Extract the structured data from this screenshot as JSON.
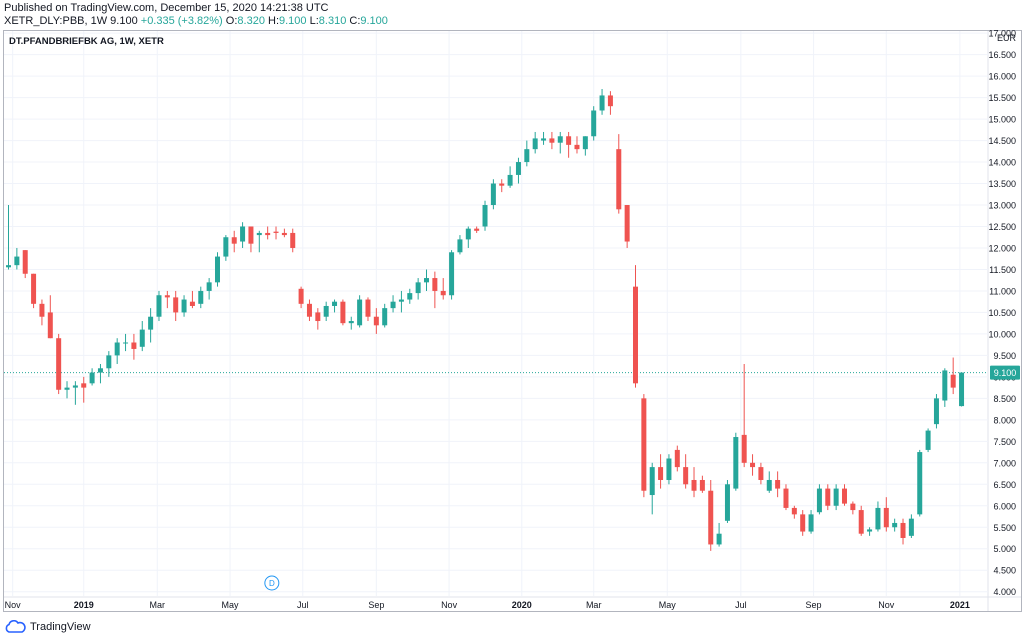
{
  "header": {
    "published": "Published on TradingView.com, December 15, 2020 14:21:38 UTC",
    "symbol": "XETR_DLY:PBB, 1W",
    "last": "9.100",
    "change": "+0.335 (+3.82%)",
    "o_label": "O:",
    "o_value": "8.320",
    "h_label": "H:",
    "h_value": "9.100",
    "l_label": "L:",
    "l_value": "8.310",
    "c_label": "C:",
    "c_value": "9.100"
  },
  "footer": {
    "brand": "TradingView"
  },
  "chart_data": {
    "type": "candlestick",
    "title": "DT.PFANDBRIEFBK AG, 1W, XETR",
    "currency": "EUR",
    "y_ticks": [
      "4.000",
      "4.500",
      "5.000",
      "5.500",
      "6.000",
      "6.500",
      "7.000",
      "7.500",
      "8.000",
      "8.500",
      "9.000",
      "9.500",
      "10.000",
      "10.500",
      "11.000",
      "11.500",
      "12.000",
      "12.500",
      "13.000",
      "13.500",
      "14.000",
      "14.500",
      "15.000",
      "15.500",
      "16.000",
      "16.500",
      "17.000"
    ],
    "ylim": [
      3.9,
      17.05
    ],
    "x_ticks": [
      {
        "label": "Nov",
        "index": 0.5
      },
      {
        "label": "2019",
        "index": 9
      },
      {
        "label": "Mar",
        "index": 17.8
      },
      {
        "label": "May",
        "index": 26.5
      },
      {
        "label": "Jul",
        "index": 35.2
      },
      {
        "label": "Sep",
        "index": 44
      },
      {
        "label": "Nov",
        "index": 52.7
      },
      {
        "label": "2020",
        "index": 61.4
      },
      {
        "label": "Mar",
        "index": 70
      },
      {
        "label": "May",
        "index": 78.8
      },
      {
        "label": "Jul",
        "index": 87.6
      },
      {
        "label": "Sep",
        "index": 96.3
      },
      {
        "label": "Nov",
        "index": 105
      },
      {
        "label": "2021",
        "index": 113.8
      }
    ],
    "last_price_label": "9.100",
    "last_price": 9.1,
    "dividend_marker": {
      "label": "D",
      "index": 31.5
    },
    "up_color": "#26a69a",
    "down_color": "#ef5350",
    "candles": [
      {
        "o": 11.55,
        "h": 13.0,
        "l": 11.5,
        "c": 11.6
      },
      {
        "o": 11.6,
        "h": 12.0,
        "l": 11.5,
        "c": 11.8
      },
      {
        "o": 11.95,
        "h": 11.95,
        "l": 11.3,
        "c": 11.4
      },
      {
        "o": 11.4,
        "h": 11.4,
        "l": 10.6,
        "c": 10.7
      },
      {
        "o": 10.7,
        "h": 10.8,
        "l": 10.2,
        "c": 10.4
      },
      {
        "o": 10.5,
        "h": 10.9,
        "l": 9.9,
        "c": 9.9
      },
      {
        "o": 9.9,
        "h": 10.0,
        "l": 8.6,
        "c": 8.7
      },
      {
        "o": 8.7,
        "h": 8.9,
        "l": 8.5,
        "c": 8.75
      },
      {
        "o": 8.75,
        "h": 8.9,
        "l": 8.35,
        "c": 8.8
      },
      {
        "o": 8.85,
        "h": 9.0,
        "l": 8.4,
        "c": 8.75
      },
      {
        "o": 8.85,
        "h": 9.2,
        "l": 8.8,
        "c": 9.1
      },
      {
        "o": 9.1,
        "h": 9.3,
        "l": 8.85,
        "c": 9.2
      },
      {
        "o": 9.2,
        "h": 9.6,
        "l": 9.0,
        "c": 9.5
      },
      {
        "o": 9.5,
        "h": 9.9,
        "l": 9.3,
        "c": 9.8
      },
      {
        "o": 9.8,
        "h": 10.0,
        "l": 9.6,
        "c": 9.8
      },
      {
        "o": 9.8,
        "h": 10.0,
        "l": 9.4,
        "c": 9.65
      },
      {
        "o": 9.7,
        "h": 10.3,
        "l": 9.6,
        "c": 10.1
      },
      {
        "o": 10.1,
        "h": 10.6,
        "l": 9.8,
        "c": 10.4
      },
      {
        "o": 10.4,
        "h": 11.0,
        "l": 10.3,
        "c": 10.9
      },
      {
        "o": 10.9,
        "h": 11.0,
        "l": 10.6,
        "c": 10.85
      },
      {
        "o": 10.85,
        "h": 11.0,
        "l": 10.3,
        "c": 10.5
      },
      {
        "o": 10.5,
        "h": 10.9,
        "l": 10.4,
        "c": 10.8
      },
      {
        "o": 10.75,
        "h": 11.0,
        "l": 10.6,
        "c": 10.65
      },
      {
        "o": 10.7,
        "h": 11.1,
        "l": 10.6,
        "c": 11.0
      },
      {
        "o": 11.0,
        "h": 11.3,
        "l": 10.8,
        "c": 11.2
      },
      {
        "o": 11.2,
        "h": 11.9,
        "l": 11.1,
        "c": 11.8
      },
      {
        "o": 11.8,
        "h": 12.3,
        "l": 11.7,
        "c": 12.25
      },
      {
        "o": 12.25,
        "h": 12.4,
        "l": 11.9,
        "c": 12.1
      },
      {
        "o": 12.15,
        "h": 12.6,
        "l": 12.0,
        "c": 12.5
      },
      {
        "o": 12.5,
        "h": 12.5,
        "l": 11.9,
        "c": 12.1
      },
      {
        "o": 12.3,
        "h": 12.4,
        "l": 11.9,
        "c": 12.35
      },
      {
        "o": 12.35,
        "h": 12.5,
        "l": 12.2,
        "c": 12.3
      },
      {
        "o": 12.38,
        "h": 12.5,
        "l": 12.2,
        "c": 12.35
      },
      {
        "o": 12.35,
        "h": 12.45,
        "l": 12.25,
        "c": 12.3
      },
      {
        "o": 12.35,
        "h": 12.45,
        "l": 11.9,
        "c": 12.0
      },
      {
        "o": 11.05,
        "h": 11.1,
        "l": 10.6,
        "c": 10.7
      },
      {
        "o": 10.7,
        "h": 10.8,
        "l": 10.3,
        "c": 10.4
      },
      {
        "o": 10.5,
        "h": 10.6,
        "l": 10.1,
        "c": 10.3
      },
      {
        "o": 10.4,
        "h": 10.75,
        "l": 10.3,
        "c": 10.65
      },
      {
        "o": 10.65,
        "h": 10.8,
        "l": 10.5,
        "c": 10.75
      },
      {
        "o": 10.75,
        "h": 10.8,
        "l": 10.2,
        "c": 10.25
      },
      {
        "o": 10.25,
        "h": 10.4,
        "l": 10.1,
        "c": 10.3
      },
      {
        "o": 10.2,
        "h": 10.9,
        "l": 10.15,
        "c": 10.8
      },
      {
        "o": 10.8,
        "h": 10.85,
        "l": 10.3,
        "c": 10.4
      },
      {
        "o": 10.4,
        "h": 10.6,
        "l": 10.0,
        "c": 10.2
      },
      {
        "o": 10.2,
        "h": 10.7,
        "l": 10.15,
        "c": 10.6
      },
      {
        "o": 10.6,
        "h": 10.9,
        "l": 10.5,
        "c": 10.75
      },
      {
        "o": 10.75,
        "h": 11.0,
        "l": 10.5,
        "c": 10.8
      },
      {
        "o": 10.8,
        "h": 11.05,
        "l": 10.7,
        "c": 10.95
      },
      {
        "o": 10.95,
        "h": 11.3,
        "l": 10.8,
        "c": 11.2
      },
      {
        "o": 11.2,
        "h": 11.5,
        "l": 11.0,
        "c": 11.3
      },
      {
        "o": 11.3,
        "h": 11.45,
        "l": 10.6,
        "c": 11.0
      },
      {
        "o": 11.0,
        "h": 11.3,
        "l": 10.8,
        "c": 10.9
      },
      {
        "o": 10.9,
        "h": 11.95,
        "l": 10.8,
        "c": 11.9
      },
      {
        "o": 11.9,
        "h": 12.3,
        "l": 11.85,
        "c": 12.2
      },
      {
        "o": 12.2,
        "h": 12.5,
        "l": 12.0,
        "c": 12.45
      },
      {
        "o": 12.45,
        "h": 12.5,
        "l": 12.35,
        "c": 12.4
      },
      {
        "o": 12.5,
        "h": 13.1,
        "l": 12.4,
        "c": 13.0
      },
      {
        "o": 13.0,
        "h": 13.6,
        "l": 12.9,
        "c": 13.5
      },
      {
        "o": 13.5,
        "h": 13.6,
        "l": 13.3,
        "c": 13.45
      },
      {
        "o": 13.45,
        "h": 13.9,
        "l": 13.4,
        "c": 13.7
      },
      {
        "o": 13.7,
        "h": 14.1,
        "l": 13.5,
        "c": 14.0
      },
      {
        "o": 14.0,
        "h": 14.5,
        "l": 13.9,
        "c": 14.3
      },
      {
        "o": 14.3,
        "h": 14.7,
        "l": 14.2,
        "c": 14.55
      },
      {
        "o": 14.5,
        "h": 14.7,
        "l": 14.4,
        "c": 14.55
      },
      {
        "o": 14.55,
        "h": 14.7,
        "l": 14.3,
        "c": 14.45
      },
      {
        "o": 14.45,
        "h": 14.7,
        "l": 14.2,
        "c": 14.6
      },
      {
        "o": 14.6,
        "h": 14.7,
        "l": 14.1,
        "c": 14.4
      },
      {
        "o": 14.4,
        "h": 14.6,
        "l": 14.2,
        "c": 14.3
      },
      {
        "o": 14.3,
        "h": 14.6,
        "l": 14.15,
        "c": 14.6
      },
      {
        "o": 14.6,
        "h": 15.3,
        "l": 14.5,
        "c": 15.2
      },
      {
        "o": 15.2,
        "h": 15.7,
        "l": 15.1,
        "c": 15.55
      },
      {
        "o": 15.55,
        "h": 15.65,
        "l": 15.1,
        "c": 15.3
      },
      {
        "o": 14.3,
        "h": 14.65,
        "l": 12.8,
        "c": 12.9
      },
      {
        "o": 13.0,
        "h": 13.0,
        "l": 12.0,
        "c": 12.15
      },
      {
        "o": 11.1,
        "h": 11.6,
        "l": 8.75,
        "c": 8.85
      },
      {
        "o": 8.5,
        "h": 8.6,
        "l": 6.2,
        "c": 6.35
      },
      {
        "o": 6.25,
        "h": 7.0,
        "l": 5.8,
        "c": 6.9
      },
      {
        "o": 6.9,
        "h": 7.2,
        "l": 6.4,
        "c": 6.6
      },
      {
        "o": 6.6,
        "h": 7.2,
        "l": 6.5,
        "c": 7.1
      },
      {
        "o": 7.3,
        "h": 7.4,
        "l": 6.8,
        "c": 6.9
      },
      {
        "o": 6.9,
        "h": 7.2,
        "l": 6.4,
        "c": 6.5
      },
      {
        "o": 6.6,
        "h": 6.9,
        "l": 6.2,
        "c": 6.35
      },
      {
        "o": 6.6,
        "h": 6.7,
        "l": 6.3,
        "c": 6.35
      },
      {
        "o": 6.35,
        "h": 6.6,
        "l": 4.95,
        "c": 5.1
      },
      {
        "o": 5.1,
        "h": 5.6,
        "l": 5.05,
        "c": 5.35
      },
      {
        "o": 5.65,
        "h": 6.6,
        "l": 5.6,
        "c": 6.5
      },
      {
        "o": 6.4,
        "h": 7.7,
        "l": 6.35,
        "c": 7.6
      },
      {
        "o": 7.65,
        "h": 9.3,
        "l": 6.9,
        "c": 7.0
      },
      {
        "o": 7.0,
        "h": 7.2,
        "l": 6.7,
        "c": 6.9
      },
      {
        "o": 6.9,
        "h": 7.0,
        "l": 6.5,
        "c": 6.6
      },
      {
        "o": 6.35,
        "h": 6.8,
        "l": 6.3,
        "c": 6.6
      },
      {
        "o": 6.6,
        "h": 6.8,
        "l": 6.2,
        "c": 6.4
      },
      {
        "o": 6.4,
        "h": 6.5,
        "l": 5.9,
        "c": 5.95
      },
      {
        "o": 5.95,
        "h": 6.0,
        "l": 5.7,
        "c": 5.8
      },
      {
        "o": 5.8,
        "h": 5.9,
        "l": 5.3,
        "c": 5.4
      },
      {
        "o": 5.4,
        "h": 5.9,
        "l": 5.35,
        "c": 5.8
      },
      {
        "o": 5.85,
        "h": 6.5,
        "l": 5.8,
        "c": 6.4
      },
      {
        "o": 6.4,
        "h": 6.5,
        "l": 5.9,
        "c": 6.0
      },
      {
        "o": 6.0,
        "h": 6.5,
        "l": 5.9,
        "c": 6.4
      },
      {
        "o": 6.4,
        "h": 6.5,
        "l": 6.0,
        "c": 6.05
      },
      {
        "o": 6.05,
        "h": 6.1,
        "l": 5.8,
        "c": 5.9
      },
      {
        "o": 5.9,
        "h": 6.0,
        "l": 5.3,
        "c": 5.35
      },
      {
        "o": 5.4,
        "h": 5.5,
        "l": 5.3,
        "c": 5.45
      },
      {
        "o": 5.45,
        "h": 6.1,
        "l": 5.4,
        "c": 5.95
      },
      {
        "o": 5.95,
        "h": 6.2,
        "l": 5.4,
        "c": 5.5
      },
      {
        "o": 5.5,
        "h": 5.7,
        "l": 5.4,
        "c": 5.6
      },
      {
        "o": 5.6,
        "h": 5.7,
        "l": 5.1,
        "c": 5.25
      },
      {
        "o": 5.3,
        "h": 5.8,
        "l": 5.25,
        "c": 5.7
      },
      {
        "o": 5.8,
        "h": 7.3,
        "l": 5.75,
        "c": 7.25
      },
      {
        "o": 7.3,
        "h": 7.8,
        "l": 7.25,
        "c": 7.75
      },
      {
        "o": 7.9,
        "h": 8.6,
        "l": 7.8,
        "c": 8.5
      },
      {
        "o": 8.45,
        "h": 9.2,
        "l": 8.3,
        "c": 9.15
      },
      {
        "o": 9.05,
        "h": 9.45,
        "l": 8.6,
        "c": 8.75
      },
      {
        "o": 8.32,
        "h": 9.1,
        "l": 8.31,
        "c": 9.1
      }
    ]
  }
}
